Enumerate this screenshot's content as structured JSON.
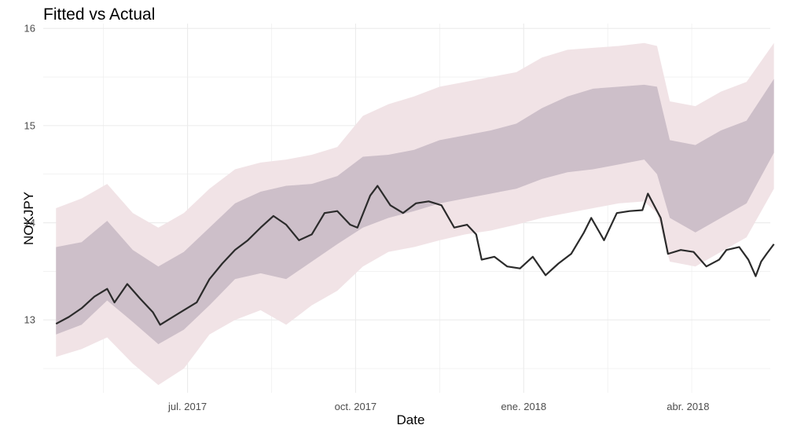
{
  "chart_data": {
    "type": "area",
    "title": "Fitted vs Actual",
    "xlabel": "Date",
    "ylabel": "NOKJPY",
    "x_tick_labels": [
      {
        "date": "2017-07-01",
        "label": "jul. 2017"
      },
      {
        "date": "2017-10-01",
        "label": "oct. 2017"
      },
      {
        "date": "2018-01-01",
        "label": "ene. 2018"
      },
      {
        "date": "2018-04-01",
        "label": "abr. 2018"
      }
    ],
    "y_ticks": [
      13,
      14,
      15,
      16
    ],
    "xlim": [
      "2017-04-13",
      "2018-05-16"
    ],
    "ylim": [
      12.25,
      16.05
    ],
    "grid": true,
    "colors": {
      "line": "#2b2b2b",
      "band_outer": "#f1e3e6",
      "band_inner": "#cdbfc9",
      "grid": "#ebebeb"
    },
    "series": [
      {
        "type": "line",
        "points": [
          [
            "2017-04-20",
            12.96
          ],
          [
            "2017-04-27",
            13.03
          ],
          [
            "2017-05-04",
            13.12
          ],
          [
            "2017-05-11",
            13.24
          ],
          [
            "2017-05-18",
            13.32
          ],
          [
            "2017-05-22",
            13.18
          ],
          [
            "2017-05-29",
            13.37
          ],
          [
            "2017-06-05",
            13.22
          ],
          [
            "2017-06-12",
            13.08
          ],
          [
            "2017-06-16",
            12.95
          ],
          [
            "2017-06-22",
            13.02
          ],
          [
            "2017-06-29",
            13.1
          ],
          [
            "2017-07-06",
            13.18
          ],
          [
            "2017-07-13",
            13.42
          ],
          [
            "2017-07-20",
            13.58
          ],
          [
            "2017-07-27",
            13.72
          ],
          [
            "2017-08-03",
            13.82
          ],
          [
            "2017-08-10",
            13.95
          ],
          [
            "2017-08-17",
            14.07
          ],
          [
            "2017-08-24",
            13.98
          ],
          [
            "2017-08-31",
            13.82
          ],
          [
            "2017-09-07",
            13.88
          ],
          [
            "2017-09-14",
            14.1
          ],
          [
            "2017-09-21",
            14.12
          ],
          [
            "2017-09-28",
            13.98
          ],
          [
            "2017-10-02",
            13.95
          ],
          [
            "2017-10-09",
            14.28
          ],
          [
            "2017-10-13",
            14.38
          ],
          [
            "2017-10-20",
            14.18
          ],
          [
            "2017-10-27",
            14.1
          ],
          [
            "2017-11-03",
            14.2
          ],
          [
            "2017-11-10",
            14.22
          ],
          [
            "2017-11-17",
            14.18
          ],
          [
            "2017-11-24",
            13.95
          ],
          [
            "2017-12-01",
            13.98
          ],
          [
            "2017-12-06",
            13.88
          ],
          [
            "2017-12-09",
            13.62
          ],
          [
            "2017-12-16",
            13.65
          ],
          [
            "2017-12-23",
            13.55
          ],
          [
            "2017-12-30",
            13.53
          ],
          [
            "2018-01-06",
            13.65
          ],
          [
            "2018-01-13",
            13.46
          ],
          [
            "2018-01-20",
            13.58
          ],
          [
            "2018-01-27",
            13.68
          ],
          [
            "2018-02-03",
            13.9
          ],
          [
            "2018-02-07",
            14.05
          ],
          [
            "2018-02-14",
            13.82
          ],
          [
            "2018-02-21",
            14.1
          ],
          [
            "2018-02-28",
            14.12
          ],
          [
            "2018-03-07",
            14.13
          ],
          [
            "2018-03-10",
            14.3
          ],
          [
            "2018-03-17",
            14.05
          ],
          [
            "2018-03-21",
            13.68
          ],
          [
            "2018-03-28",
            13.72
          ],
          [
            "2018-04-04",
            13.7
          ],
          [
            "2018-04-11",
            13.55
          ],
          [
            "2018-04-18",
            13.62
          ],
          [
            "2018-04-22",
            13.72
          ],
          [
            "2018-04-29",
            13.75
          ],
          [
            "2018-05-04",
            13.62
          ],
          [
            "2018-05-08",
            13.45
          ],
          [
            "2018-05-11",
            13.6
          ],
          [
            "2018-05-14",
            13.68
          ],
          [
            "2018-05-18",
            13.78
          ]
        ]
      },
      {
        "type": "band_inner",
        "points": [
          [
            "2017-04-20",
            13.75,
            12.85
          ],
          [
            "2017-05-04",
            13.8,
            12.95
          ],
          [
            "2017-05-18",
            14.02,
            13.2
          ],
          [
            "2017-06-01",
            13.72,
            12.98
          ],
          [
            "2017-06-15",
            13.55,
            12.75
          ],
          [
            "2017-06-29",
            13.7,
            12.9
          ],
          [
            "2017-07-13",
            13.95,
            13.15
          ],
          [
            "2017-07-27",
            14.2,
            13.42
          ],
          [
            "2017-08-10",
            14.32,
            13.48
          ],
          [
            "2017-08-24",
            14.38,
            13.42
          ],
          [
            "2017-09-07",
            14.4,
            13.6
          ],
          [
            "2017-09-21",
            14.48,
            13.78
          ],
          [
            "2017-10-05",
            14.68,
            13.95
          ],
          [
            "2017-10-19",
            14.7,
            14.05
          ],
          [
            "2017-11-02",
            14.75,
            14.12
          ],
          [
            "2017-11-16",
            14.85,
            14.2
          ],
          [
            "2017-11-30",
            14.9,
            14.25
          ],
          [
            "2017-12-14",
            14.95,
            14.3
          ],
          [
            "2017-12-28",
            15.02,
            14.35
          ],
          [
            "2018-01-11",
            15.18,
            14.45
          ],
          [
            "2018-01-25",
            15.3,
            14.52
          ],
          [
            "2018-02-08",
            15.38,
            14.55
          ],
          [
            "2018-02-22",
            15.4,
            14.6
          ],
          [
            "2018-03-08",
            15.42,
            14.65
          ],
          [
            "2018-03-15",
            15.4,
            14.5
          ],
          [
            "2018-03-22",
            14.85,
            14.05
          ],
          [
            "2018-04-05",
            14.8,
            13.9
          ],
          [
            "2018-04-19",
            14.95,
            14.05
          ],
          [
            "2018-05-03",
            15.05,
            14.2
          ],
          [
            "2018-05-18",
            15.48,
            14.72
          ]
        ]
      },
      {
        "type": "band_outer",
        "points": [
          [
            "2017-04-20",
            14.15,
            12.62
          ],
          [
            "2017-05-04",
            14.25,
            12.7
          ],
          [
            "2017-05-18",
            14.4,
            12.82
          ],
          [
            "2017-06-01",
            14.1,
            12.55
          ],
          [
            "2017-06-15",
            13.95,
            12.33
          ],
          [
            "2017-06-29",
            14.1,
            12.5
          ],
          [
            "2017-07-13",
            14.35,
            12.85
          ],
          [
            "2017-07-27",
            14.55,
            13.0
          ],
          [
            "2017-08-10",
            14.62,
            13.1
          ],
          [
            "2017-08-24",
            14.65,
            12.95
          ],
          [
            "2017-09-07",
            14.7,
            13.15
          ],
          [
            "2017-09-21",
            14.78,
            13.3
          ],
          [
            "2017-10-05",
            15.1,
            13.55
          ],
          [
            "2017-10-19",
            15.22,
            13.7
          ],
          [
            "2017-11-02",
            15.3,
            13.75
          ],
          [
            "2017-11-16",
            15.4,
            13.82
          ],
          [
            "2017-11-30",
            15.45,
            13.88
          ],
          [
            "2017-12-14",
            15.5,
            13.92
          ],
          [
            "2017-12-28",
            15.55,
            13.98
          ],
          [
            "2018-01-11",
            15.7,
            14.05
          ],
          [
            "2018-01-25",
            15.78,
            14.1
          ],
          [
            "2018-02-08",
            15.8,
            14.15
          ],
          [
            "2018-02-22",
            15.82,
            14.2
          ],
          [
            "2018-03-08",
            15.85,
            14.22
          ],
          [
            "2018-03-15",
            15.82,
            14.1
          ],
          [
            "2018-03-22",
            15.25,
            13.6
          ],
          [
            "2018-04-05",
            15.2,
            13.55
          ],
          [
            "2018-04-19",
            15.35,
            13.7
          ],
          [
            "2018-05-03",
            15.45,
            13.85
          ],
          [
            "2018-05-18",
            15.85,
            14.35
          ]
        ]
      }
    ]
  }
}
